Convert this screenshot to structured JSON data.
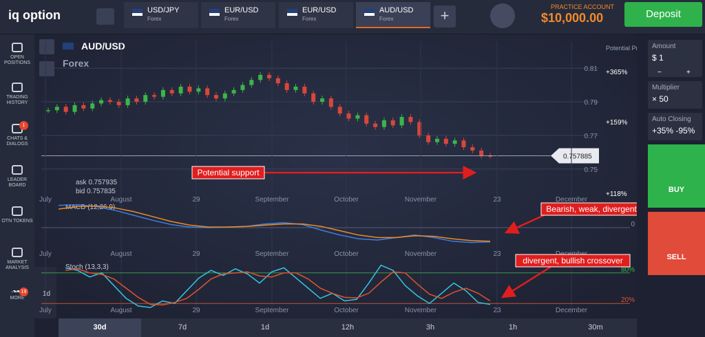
{
  "header": {
    "logo": "iq option",
    "tabs": [
      {
        "symbol": "USD/JPY",
        "market": "Forex"
      },
      {
        "symbol": "EUR/USD",
        "market": "Forex"
      },
      {
        "symbol": "EUR/USD",
        "market": "Forex"
      },
      {
        "symbol": "AUD/USD",
        "market": "Forex"
      }
    ],
    "account_label": "PRACTICE ACCOUNT",
    "balance": "$10,000.00",
    "deposit": "Deposit"
  },
  "sidebar": [
    {
      "label": "OPEN POSITIONS"
    },
    {
      "label": "TRADING HISTORY"
    },
    {
      "label": "CHATS & DIALOGS",
      "badge": "1"
    },
    {
      "label": "LEADER BOARD"
    },
    {
      "label": "OTN TOKENS"
    },
    {
      "label": "MARKET ANALYSIS"
    },
    {
      "label": "MORE",
      "badge": "19"
    }
  ],
  "chart_data": [
    {
      "type": "candlestick",
      "title": "AUD/USD",
      "subtitle": "Forex",
      "ask": "ask 0.757935",
      "bid": "bid 0.757835",
      "current_price": 0.757885,
      "ylim": [
        0.736,
        0.826
      ],
      "yticks": [
        0.81,
        0.79,
        0.77,
        0.75
      ],
      "x_labels": [
        "July",
        "August",
        "29",
        "September",
        "October",
        "November",
        "23",
        "December"
      ],
      "series": [
        {
          "name": "AUD/USD",
          "values": [
            0.785,
            0.787,
            0.784,
            0.788,
            0.786,
            0.789,
            0.791,
            0.79,
            0.788,
            0.792,
            0.79,
            0.794,
            0.793,
            0.797,
            0.795,
            0.799,
            0.796,
            0.798,
            0.794,
            0.792,
            0.795,
            0.797,
            0.8,
            0.803,
            0.806,
            0.804,
            0.801,
            0.797,
            0.799,
            0.795,
            0.79,
            0.792,
            0.787,
            0.783,
            0.78,
            0.782,
            0.777,
            0.775,
            0.779,
            0.776,
            0.781,
            0.778,
            0.77,
            0.766,
            0.768,
            0.765,
            0.767,
            0.763,
            0.761,
            0.758,
            0.7579
          ]
        }
      ],
      "annotation": "Potential support"
    },
    {
      "type": "line",
      "title": "MACD (12,26,9)",
      "ylim": [
        -0.004,
        0.004
      ],
      "yticks": [
        0
      ],
      "series": [
        {
          "color": "#3d7fe0",
          "values": [
            0.0036,
            0.0037,
            0.0034,
            0.0028,
            0.002,
            0.0012,
            0.0005,
            0.0001,
            0,
            0.0001,
            0.0002,
            0.0006,
            0.0008,
            0.0005,
            -0.0004,
            -0.0012,
            -0.0018,
            -0.002,
            -0.0016,
            -0.0012,
            -0.0016,
            -0.0022,
            -0.0024,
            -0.0023
          ]
        },
        {
          "color": "#f08a24",
          "values": [
            0.003,
            0.0034,
            0.0035,
            0.0032,
            0.0026,
            0.0018,
            0.001,
            0.0004,
            0.0001,
            0.0001,
            0.0002,
            0.0004,
            0.0006,
            0.0006,
            0.0002,
            -0.0005,
            -0.0012,
            -0.0016,
            -0.0016,
            -0.0013,
            -0.0014,
            -0.0018,
            -0.0021,
            -0.0022
          ]
        }
      ],
      "annotation": "Bearish, weak, divergent"
    },
    {
      "type": "line",
      "title": "Stoch (13,3,3)",
      "ylim": [
        0,
        100
      ],
      "yticks": [
        {
          "value": 80,
          "label": "80%"
        },
        {
          "value": 20,
          "label": "20%"
        }
      ],
      "series": [
        {
          "color": "#33c6e0",
          "values": [
            90,
            85,
            72,
            80,
            55,
            30,
            15,
            12,
            25,
            20,
            45,
            70,
            85,
            75,
            88,
            78,
            60,
            82,
            90,
            70,
            50,
            30,
            40,
            25,
            28,
            60,
            95,
            85,
            55,
            35,
            20,
            40,
            60,
            45,
            22,
            18
          ]
        },
        {
          "color": "#e0532f",
          "values": [
            85,
            88,
            80,
            77,
            68,
            50,
            32,
            18,
            17,
            22,
            30,
            48,
            68,
            78,
            80,
            82,
            74,
            72,
            80,
            80,
            68,
            50,
            40,
            32,
            31,
            40,
            62,
            82,
            80,
            58,
            38,
            30,
            42,
            50,
            40,
            25
          ]
        }
      ],
      "annotation": "divergent, bullish crossover"
    }
  ],
  "potential_profit": {
    "title": "Potential Profit",
    "levels": [
      "+365%",
      "+159%",
      "+118%"
    ]
  },
  "stoch_tool": "1d",
  "timeframes": [
    "30d",
    "7d",
    "1d",
    "12h",
    "3h",
    "1h",
    "30m"
  ],
  "trade_panel": {
    "amount_label": "Amount",
    "amount": "$ 1",
    "minus": "−",
    "plus": "+",
    "multiplier_label": "Multiplier",
    "multiplier": "× 50",
    "auto_closing_label": "Auto Closing",
    "auto_closing": "+35% -95%",
    "buy": "BUY",
    "sell": "SELL"
  }
}
